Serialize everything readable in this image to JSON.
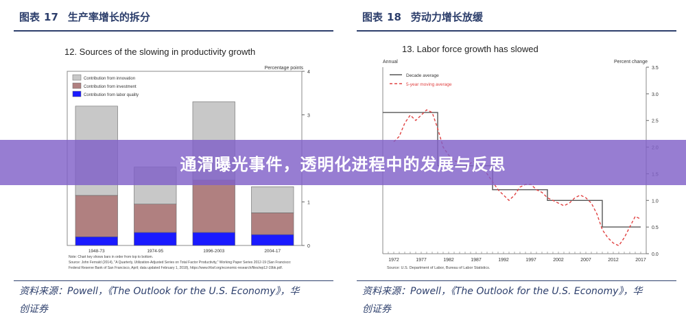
{
  "left": {
    "header_prefix": "图表",
    "header_num": "17",
    "header_title": "生产率增长的拆分",
    "source_line1": "资料来源：Powell，《The Outlook for the U.S. Economy》，华",
    "source_line2": "创证券"
  },
  "right": {
    "header_prefix": "图表",
    "header_num": "18",
    "header_title": "劳动力增长放缓",
    "source_line1": "资料来源：Powell，《The Outlook for the U.S. Economy》，华",
    "source_line2": "创证券"
  },
  "banner": {
    "title": "通渭曝光事件，透明化进程中的发展与反思"
  },
  "colors": {
    "innovation": "#c8c8c8",
    "investment": "#b08080",
    "labor": "#1a1aff",
    "decade": "#555555",
    "moving": "#e04040",
    "header": "#2c3e6b"
  },
  "chart_data": [
    {
      "type": "bar",
      "title": "12. Sources of the slowing in productivity growth",
      "ylabel": "Percentage points",
      "ylim": [
        0,
        4
      ],
      "yticks": [
        "0",
        "1",
        "2",
        "3",
        "4"
      ],
      "categories": [
        "1948-73",
        "1974-95",
        "1996-2003",
        "2004-17"
      ],
      "series": [
        {
          "name": "Contribution from labor quality",
          "values": [
            0.2,
            0.3,
            0.3,
            0.25
          ]
        },
        {
          "name": "Contribution from investment",
          "values": [
            0.95,
            0.65,
            1.2,
            0.5
          ]
        },
        {
          "name": "Contribution from innovation",
          "values": [
            2.05,
            0.85,
            1.8,
            0.6
          ]
        }
      ],
      "legend_order": [
        "Contribution from innovation",
        "Contribution from investment",
        "Contribution from labor quality"
      ],
      "legend": "top-left",
      "note1": "Note:  Chart key shows bars in order from top to bottom.",
      "note2": "Source:  John Fernald (2014), \"A Quarterly, Utilization-Adjusted Series on Total Factor Productivity,\" Working Paper Series 2012-19 (San Francisco:",
      "note3": "Federal Reserve Bank of San Francisco, April; data updated February 1, 2018), https://www.frbsf.org/economic-research/files/wp12-19bk.pdf."
    },
    {
      "type": "line",
      "title": "13. Labor force growth has slowed",
      "ylabel_left": "Annual",
      "ylabel": "Percent change",
      "ylim": [
        0,
        3.5
      ],
      "yticks": [
        "0.0",
        "0.5",
        "1.0",
        "1.5",
        "2.0",
        "2.5",
        "3.0",
        "3.5"
      ],
      "xlim": [
        1970,
        2018
      ],
      "xticks": [
        "1972",
        "1977",
        "1982",
        "1987",
        "1992",
        "1997",
        "2002",
        "2007",
        "2012",
        "2017"
      ],
      "legend": "top-left",
      "series": [
        {
          "name": "Decade average",
          "x": [
            1970,
            1980,
            1980,
            1990,
            1990,
            2000,
            2000,
            2010,
            2010,
            2017
          ],
          "y": [
            2.65,
            2.65,
            1.65,
            1.65,
            1.2,
            1.2,
            1.0,
            1.0,
            0.5,
            0.5
          ]
        },
        {
          "name": "5-year moving average",
          "x": [
            1972,
            1973,
            1974,
            1975,
            1976,
            1977,
            1978,
            1979,
            1980,
            1981,
            1982,
            1983,
            1984,
            1985,
            1986,
            1987,
            1988,
            1989,
            1990,
            1991,
            1992,
            1993,
            1994,
            1995,
            1996,
            1997,
            1998,
            1999,
            2000,
            2001,
            2002,
            2003,
            2004,
            2005,
            2006,
            2007,
            2008,
            2009,
            2010,
            2011,
            2012,
            2013,
            2014,
            2015,
            2016,
            2017
          ],
          "y": [
            2.1,
            2.2,
            2.45,
            2.6,
            2.5,
            2.6,
            2.7,
            2.65,
            2.35,
            2.0,
            1.85,
            1.75,
            1.7,
            1.6,
            1.7,
            1.75,
            1.6,
            1.5,
            1.35,
            1.2,
            1.1,
            1.0,
            1.1,
            1.25,
            1.3,
            1.3,
            1.2,
            1.15,
            1.05,
            1.0,
            0.95,
            0.9,
            0.95,
            1.05,
            1.1,
            1.05,
            0.95,
            0.75,
            0.45,
            0.3,
            0.2,
            0.15,
            0.3,
            0.5,
            0.7,
            0.65
          ]
        }
      ],
      "source": "Source:  U.S. Department of Labor, Bureau of Labor Statistics."
    }
  ]
}
